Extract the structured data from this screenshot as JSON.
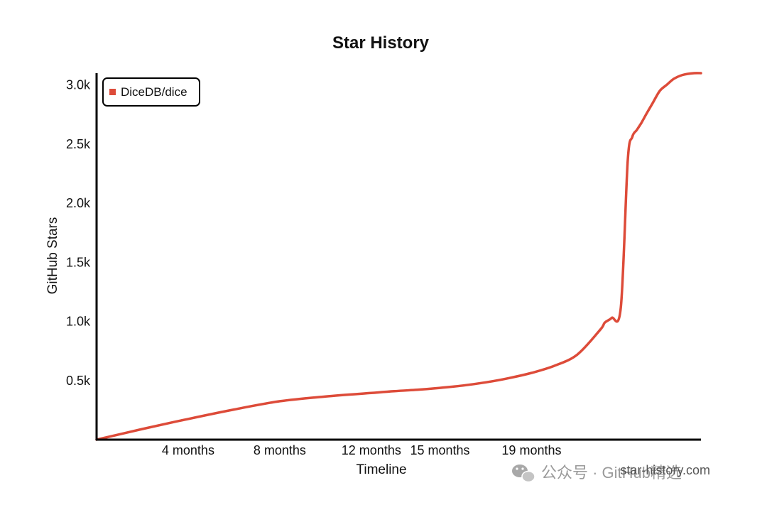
{
  "chart_data": {
    "type": "line",
    "title": "Star History",
    "xlabel": "Timeline",
    "ylabel": "GitHub Stars",
    "x_tick_labels": [
      "4 months",
      "8 months",
      "12 months",
      "15 months",
      "19 months"
    ],
    "y_tick_labels": [
      "0.5k",
      "1.0k",
      "1.5k",
      "2.0k",
      "2.5k",
      "3.0k"
    ],
    "ylim": [
      0,
      3100
    ],
    "grid": false,
    "legend_position": "top-left",
    "series": [
      {
        "name": "DiceDB/dice",
        "color": "#dd4b39",
        "x_months": [
          0,
          2,
          4,
          6,
          8,
          10,
          12,
          13,
          14,
          15,
          16,
          17,
          18,
          19,
          20,
          21,
          22,
          22.2,
          22.5,
          22.9,
          23.2,
          23.4,
          23.6,
          23.8,
          24.0,
          24.3,
          24.6,
          24.9,
          25.2,
          25.6,
          26.1,
          26.4
        ],
        "values": [
          0,
          90,
          175,
          255,
          325,
          365,
          395,
          410,
          422,
          438,
          458,
          485,
          520,
          565,
          625,
          720,
          930,
          990,
          1030,
          1120,
          2350,
          2560,
          2620,
          2680,
          2750,
          2850,
          2950,
          3000,
          3050,
          3085,
          3100,
          3100
        ]
      }
    ]
  },
  "footer": {
    "source": "star-history.com"
  },
  "watermark": {
    "label": "公众号 · GitHub精选",
    "icon": "wechat-icon"
  }
}
